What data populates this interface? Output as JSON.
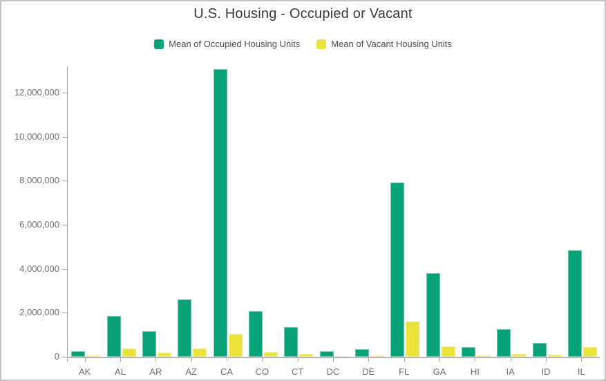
{
  "title": "U.S. Housing - Occupied or Vacant",
  "chart_data": {
    "type": "bar",
    "title": "U.S. Housing - Occupied or Vacant",
    "xlabel": "",
    "ylabel": "",
    "grid": false,
    "legend_position": "top",
    "categories": [
      "AK",
      "AL",
      "AR",
      "AZ",
      "CA",
      "CO",
      "CT",
      "DC",
      "DE",
      "FL",
      "GA",
      "HI",
      "IA",
      "ID",
      "IL"
    ],
    "series": [
      {
        "name": "Mean of Occupied Housing Units",
        "color": "#08a278",
        "values": [
          240000,
          1850000,
          1150000,
          2610000,
          13050000,
          2080000,
          1350000,
          250000,
          345000,
          7900000,
          3810000,
          440000,
          1250000,
          630000,
          4850000
        ]
      },
      {
        "name": "Mean of Vacant Housing Units",
        "color": "#ece23c",
        "values": [
          60000,
          370000,
          190000,
          370000,
          1050000,
          220000,
          120000,
          30000,
          50000,
          1600000,
          460000,
          55000,
          125000,
          90000,
          455000
        ]
      }
    ],
    "ylim": [
      0,
      13190000
    ],
    "y_ticks": [
      0,
      2000000,
      4000000,
      6000000,
      8000000,
      10000000,
      12000000
    ],
    "y_tick_labels": [
      "0",
      "2,000,000",
      "4,000,000",
      "6,000,000",
      "8,000,000",
      "10,000,000",
      "12,000,000"
    ]
  },
  "colors": {
    "occupied_series": "#08a278",
    "vacant_series": "#ece23c",
    "axis": "#a2a2a2",
    "tick_label": "#6e6e6e",
    "title_text": "#383838",
    "legend_text": "#4c4c4c",
    "frame_border": "#c3c3c3",
    "background": "#ffffff"
  }
}
